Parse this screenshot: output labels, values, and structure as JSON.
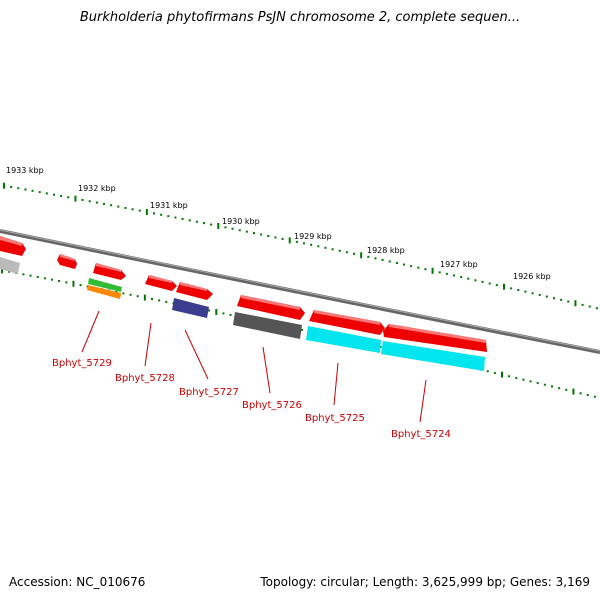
{
  "title": "Burkholderia phytofirmans PsJN chromosome 2, complete sequen...",
  "footer": {
    "accession": "Accession: NC_010676",
    "topology": "Topology: circular; Length: 3,625,999 bp; Genes: 3,169"
  },
  "ticks": [
    {
      "label": "1933 kbp"
    },
    {
      "label": "1932 kbp"
    },
    {
      "label": "1931 kbp"
    },
    {
      "label": "1930 kbp"
    },
    {
      "label": "1929 kbp"
    },
    {
      "label": "1928 kbp"
    },
    {
      "label": "1927 kbp"
    },
    {
      "label": "1926 kbp"
    }
  ],
  "gene_labels": [
    {
      "label": "Bphyt_5729"
    },
    {
      "label": "Bphyt_5728"
    },
    {
      "label": "Bphyt_5727"
    },
    {
      "label": "Bphyt_5726"
    },
    {
      "label": "Bphyt_5725"
    },
    {
      "label": "Bphyt_5724"
    }
  ],
  "colors": {
    "gene": "#ee0000",
    "label": "#cc0000",
    "tick": "#007700",
    "backbone": "#808080",
    "cyan": "#00e5ee",
    "purple": "#3d3d8f",
    "dark_gray": "#555555",
    "light_gray": "#bbbbbb",
    "green": "#33bb33",
    "orange": "#ff8800"
  }
}
